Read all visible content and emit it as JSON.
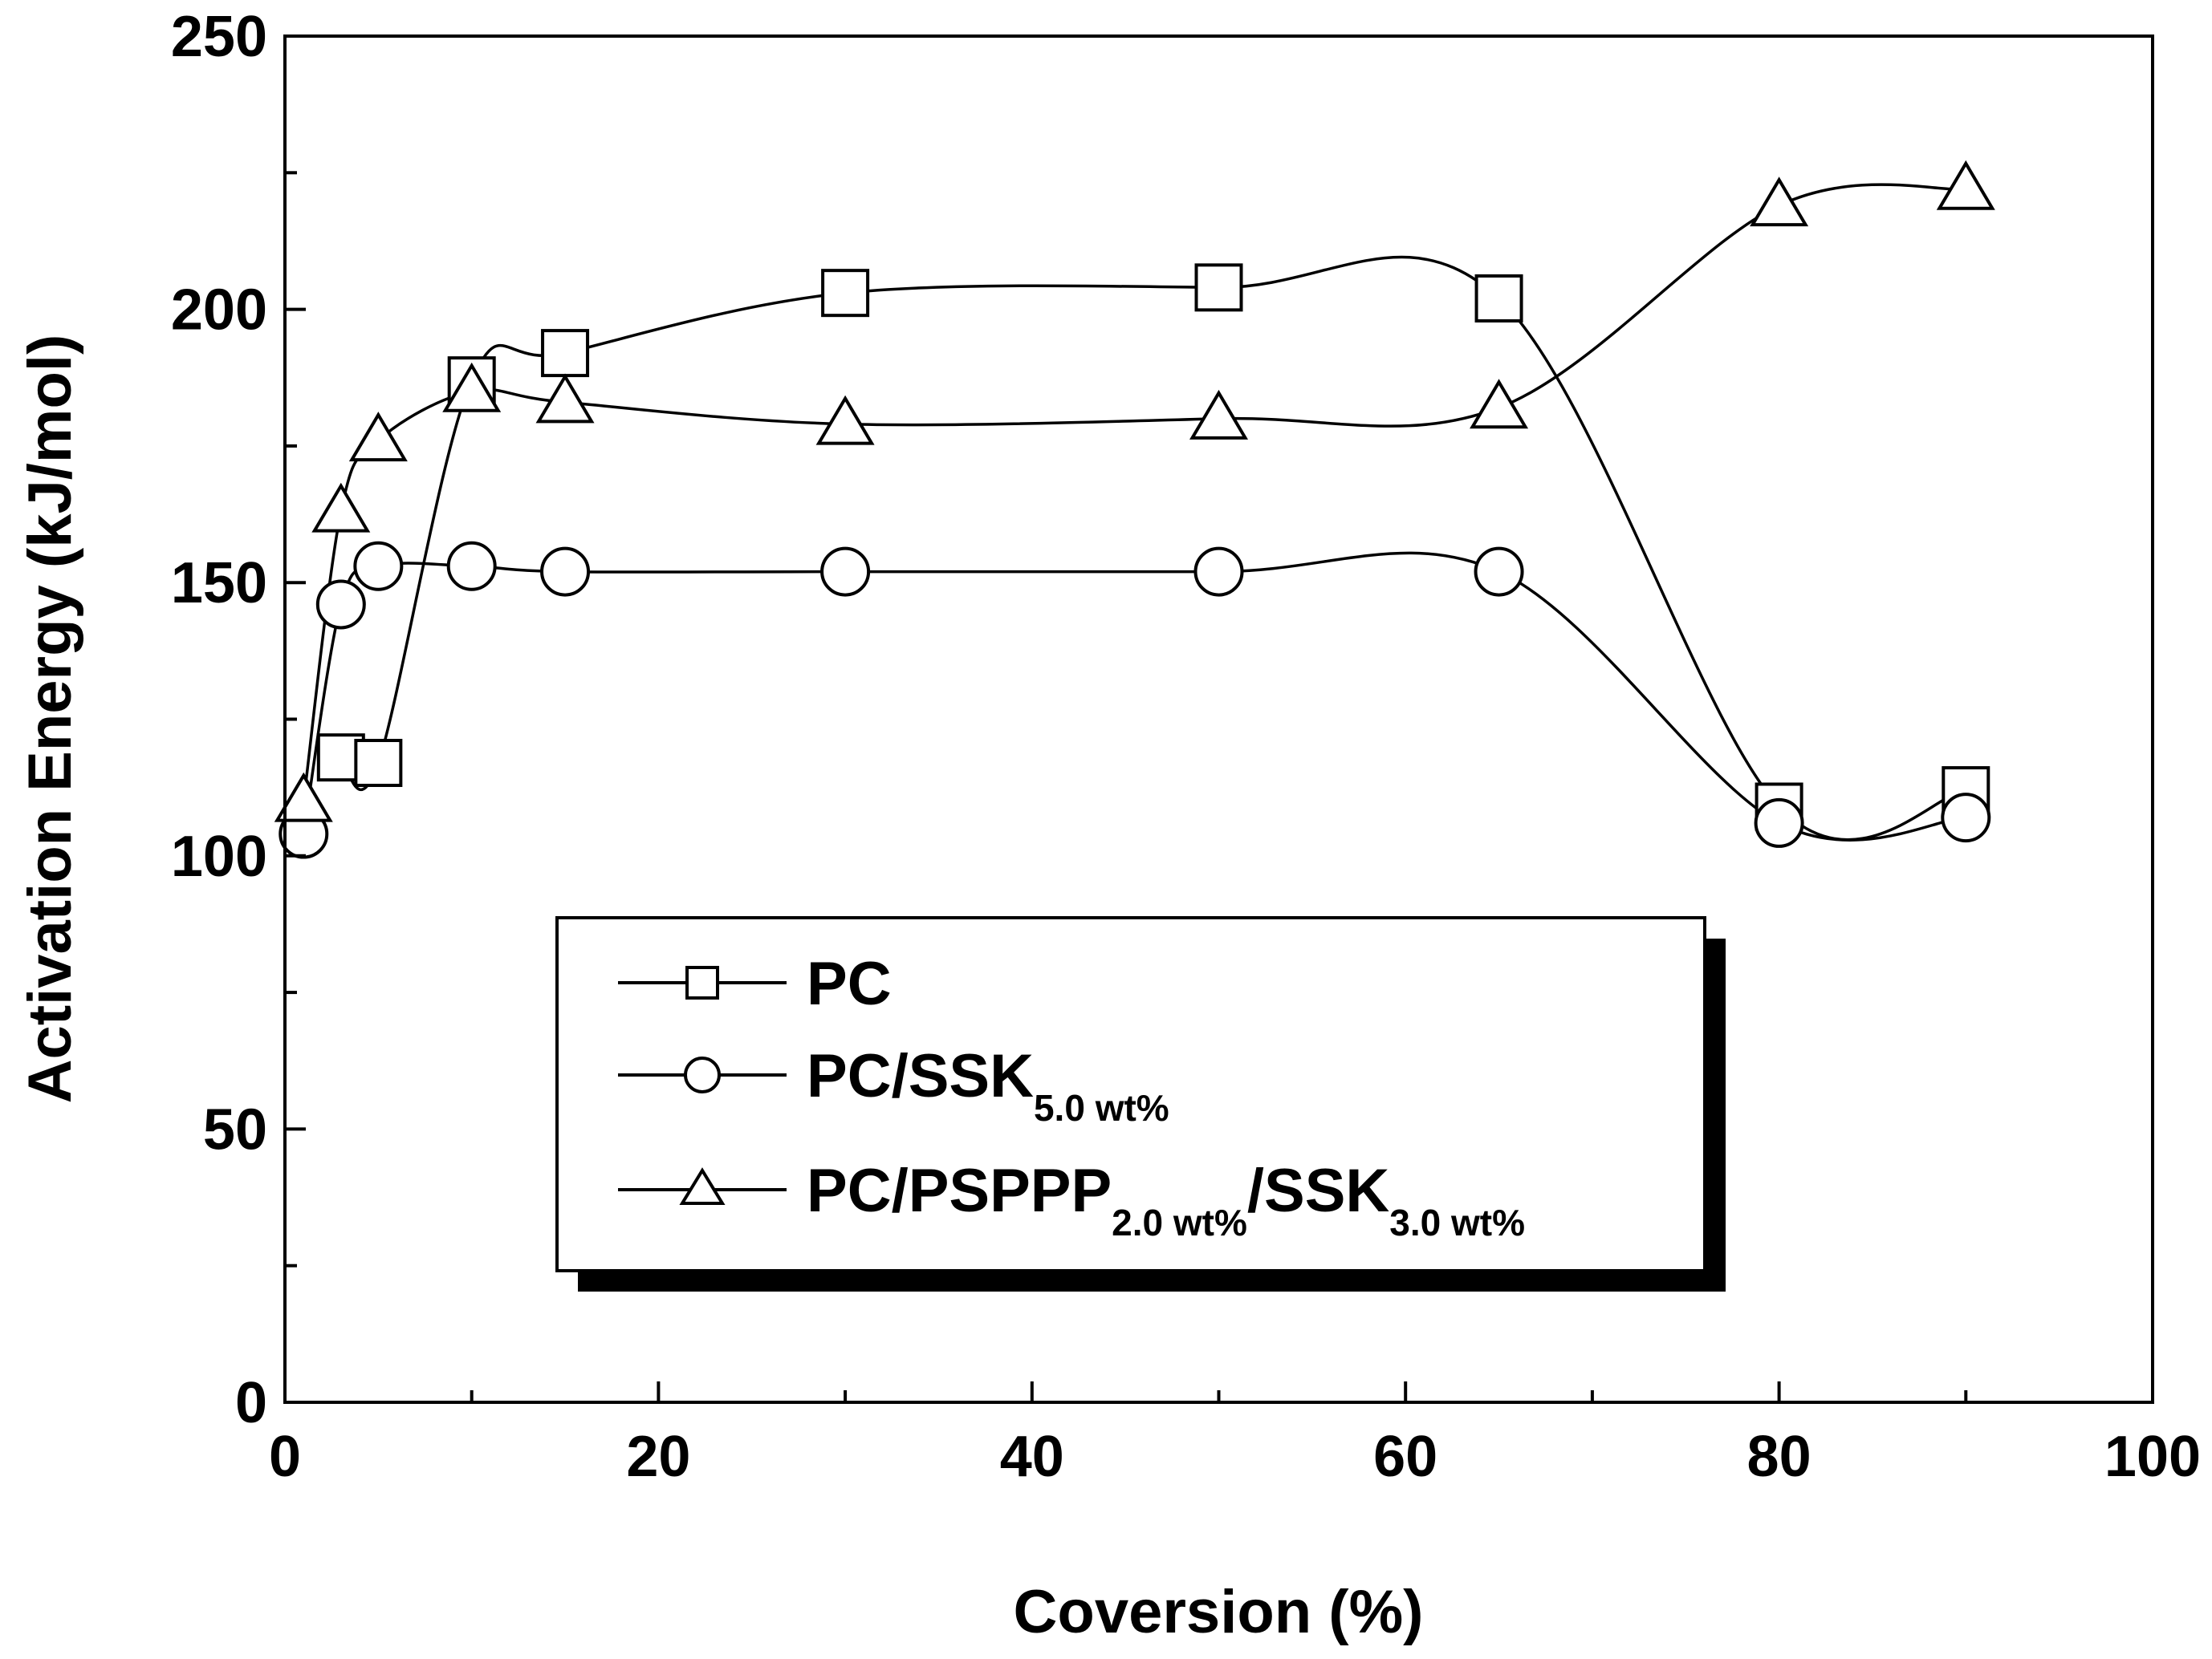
{
  "chart_data": {
    "type": "line",
    "title": "",
    "xlabel": "Coversion (%)",
    "ylabel": "Activation Energy (kJ/mol)",
    "xlim": [
      0,
      100
    ],
    "ylim": [
      0,
      250
    ],
    "xticks": [
      0,
      20,
      40,
      60,
      80,
      100
    ],
    "yticks": [
      0,
      50,
      100,
      150,
      200,
      250
    ],
    "grid": false,
    "legend_position": "center-left",
    "series": [
      {
        "name": "PC",
        "label_main": "PC",
        "marker": "square",
        "x": [
          3,
          5,
          10,
          15,
          30,
          50,
          65,
          80,
          90
        ],
        "y": [
          118,
          117,
          187,
          192,
          203,
          204,
          202,
          109,
          112
        ]
      },
      {
        "name": "PC/SSK5.0 wt%",
        "label_main": "PC/SSK",
        "label_sub1": "5.0 wt%",
        "marker": "circle",
        "x": [
          1,
          3,
          5,
          10,
          15,
          30,
          50,
          65,
          80,
          90
        ],
        "y": [
          104,
          146,
          153,
          153,
          152,
          152,
          152,
          152,
          106,
          107
        ]
      },
      {
        "name": "PC/PSPPP2.0 wt%/SSK3.0 wt%",
        "label_main": "PC/PSPPP",
        "label_sub1": "2.0 wt%",
        "label_mid": "/SSK",
        "label_sub2": "3.0 wt%",
        "marker": "triangle",
        "x": [
          1,
          3,
          5,
          10,
          15,
          30,
          50,
          65,
          80,
          90
        ],
        "y": [
          110,
          163,
          176,
          185,
          183,
          179,
          180,
          182,
          219,
          222
        ]
      }
    ]
  }
}
